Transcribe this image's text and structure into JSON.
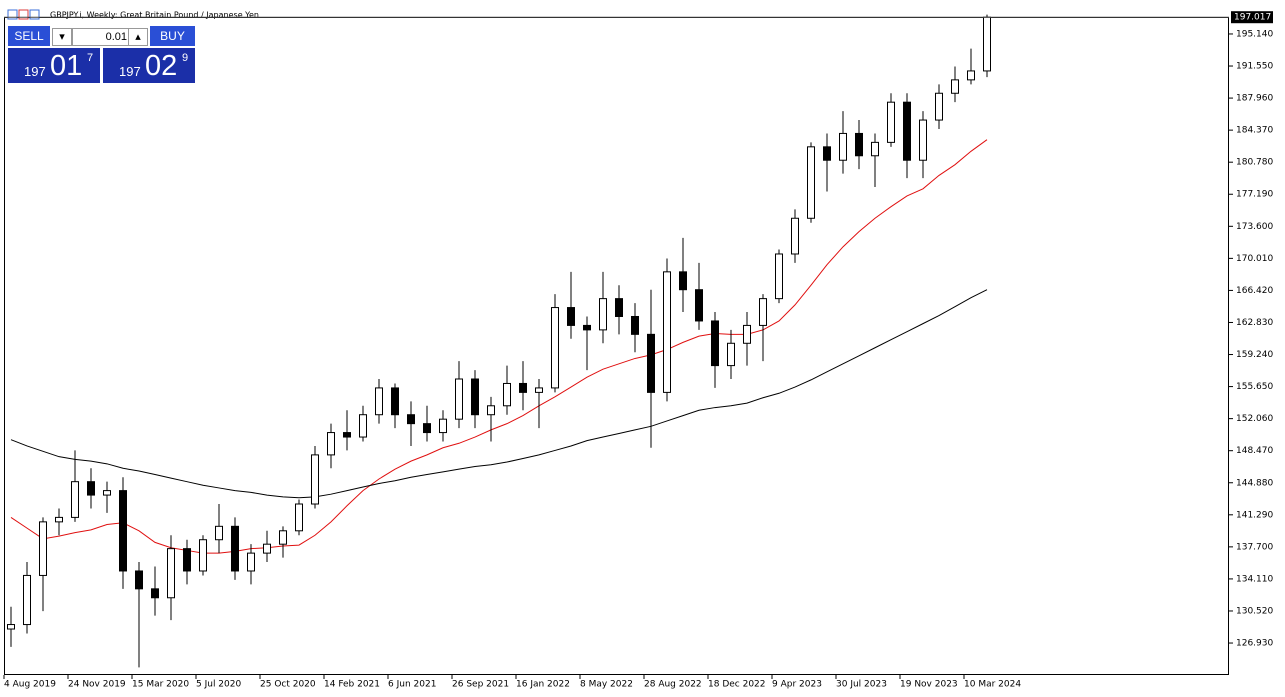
{
  "chart_data": {
    "type": "candlestick",
    "title": "GBPJPY.i, Weekly:  Great Britain Pound / Japanese Yen",
    "categories": [
      "4 Aug 2019",
      null,
      null,
      null,
      "24 Nov 2019",
      null,
      null,
      null,
      "15 Mar 2020",
      null,
      null,
      null,
      "5 Jul 2020",
      null,
      null,
      null,
      "25 Oct 2020",
      null,
      null,
      null,
      "14 Feb 2021",
      null,
      null,
      null,
      "6 Jun 2021",
      null,
      null,
      null,
      "26 Sep 2021",
      null,
      null,
      null,
      "16 Jan 2022",
      null,
      null,
      null,
      "8 May 2022",
      null,
      null,
      null,
      "28 Aug 2022",
      null,
      null,
      null,
      "18 Dec 2022",
      null,
      null,
      null,
      "9 Apr 2023",
      null,
      null,
      null,
      "30 Jul 2023",
      null,
      null,
      null,
      "19 Nov 2023",
      null,
      null,
      null,
      "10 Mar 2024",
      null
    ],
    "open": [
      128.5,
      129,
      134.5,
      140.5,
      141,
      145,
      143.5,
      144,
      135,
      133,
      132,
      137.5,
      135,
      138.5,
      140,
      135,
      137,
      138,
      139.5,
      142.5,
      148,
      150.5,
      150,
      152.5,
      155.5,
      152.5,
      151.5,
      150.5,
      152,
      156.5,
      152.5,
      153.5,
      156,
      155,
      155.5,
      164.5,
      162.5,
      162,
      165.5,
      163.5,
      161.5,
      155,
      168.5,
      166.5,
      163,
      158,
      160.5,
      162.5,
      165.5,
      170.5,
      174.5,
      182.5,
      181,
      184,
      181.5,
      183,
      187.5,
      181,
      185.5,
      188.5,
      190,
      191
    ],
    "high": [
      131,
      136,
      141,
      142,
      148.5,
      146.5,
      145,
      145.5,
      136,
      135.5,
      139,
      138.5,
      139,
      142.5,
      141,
      138,
      139.5,
      140,
      143,
      149,
      151.5,
      153,
      153.5,
      156.5,
      156,
      154,
      153.5,
      153,
      158.5,
      157.5,
      154.5,
      158,
      158.5,
      156.5,
      166,
      168.5,
      163.5,
      168.5,
      167,
      165,
      166.5,
      170,
      172.3,
      169.5,
      164,
      162,
      164,
      166,
      171,
      175.5,
      183,
      184,
      186.5,
      185.5,
      184,
      188.5,
      188.5,
      186.5,
      189.5,
      191.5,
      193.5,
      197.3
    ],
    "low": [
      126.5,
      128,
      130.5,
      139,
      140.5,
      142,
      141.5,
      133,
      124.2,
      130,
      129.5,
      133.5,
      134.5,
      137,
      134,
      133.5,
      136,
      136.5,
      139,
      142,
      146.5,
      148.5,
      149.5,
      151.5,
      151,
      149,
      149.5,
      149.5,
      151,
      151,
      149.5,
      152.5,
      153,
      151,
      155,
      161,
      157.5,
      160.5,
      161.5,
      159.5,
      148.8,
      154,
      164,
      162,
      155.5,
      156.5,
      158,
      158.5,
      165,
      169.5,
      174,
      177.5,
      179.5,
      180,
      178,
      182.5,
      179,
      179,
      184.5,
      187.5,
      189.5,
      190.3
    ],
    "close": [
      129,
      134.5,
      140.5,
      141,
      145,
      143.5,
      144,
      135,
      133,
      132,
      137.5,
      135,
      138.5,
      140,
      135,
      137,
      138,
      139.5,
      142.5,
      148,
      150.5,
      150,
      152.5,
      155.5,
      152.5,
      151.5,
      150.5,
      152,
      156.5,
      152.5,
      153.5,
      156,
      155,
      155.5,
      164.5,
      162.5,
      162,
      165.5,
      163.5,
      161.5,
      155,
      168.5,
      166.5,
      163,
      158,
      160.5,
      162.5,
      165.5,
      170.5,
      174.5,
      182.5,
      181,
      184,
      181.5,
      183,
      187.5,
      181,
      185.5,
      188.5,
      190,
      191,
      197.017
    ],
    "up_color": "#ffffff",
    "down_color": "#000000",
    "series": [
      {
        "color": "#e01010",
        "values": [
          141,
          139.8,
          138.6,
          138.9,
          139.3,
          139.6,
          140.2,
          140.4,
          139.5,
          138.2,
          137.6,
          137.3,
          137,
          137,
          137.2,
          137.5,
          137.6,
          137.8,
          137.9,
          139,
          140.5,
          142.3,
          144,
          145.3,
          146.4,
          147.3,
          148,
          148.8,
          149.3,
          150,
          150.8,
          151.5,
          152.4,
          153.5,
          154.5,
          155.6,
          156.7,
          157.6,
          158.2,
          158.8,
          159.2,
          159.8,
          160.6,
          161.3,
          161.6,
          161.5,
          161.5,
          162,
          163,
          164.8,
          167,
          169.3,
          171.3,
          173,
          174.5,
          175.8,
          177,
          177.8,
          179.3,
          180.5,
          182,
          183.3
        ]
      },
      {
        "color": "#000000",
        "values": [
          149.7,
          149,
          148.4,
          147.8,
          147.5,
          147.3,
          147,
          146.5,
          146.2,
          145.8,
          145.4,
          145,
          144.6,
          144.3,
          144,
          143.8,
          143.5,
          143.3,
          143.2,
          143.3,
          143.6,
          144,
          144.4,
          144.8,
          145.1,
          145.5,
          145.8,
          146.1,
          146.4,
          146.7,
          146.9,
          147.2,
          147.6,
          148,
          148.5,
          149,
          149.6,
          150,
          150.4,
          150.8,
          151.2,
          151.8,
          152.4,
          153,
          153.3,
          153.5,
          153.8,
          154.4,
          154.9,
          155.6,
          156.4,
          157.3,
          158.2,
          159.1,
          160,
          160.9,
          161.8,
          162.7,
          163.6,
          164.6,
          165.6,
          166.5
        ]
      }
    ],
    "ylim": [
      123.35,
      197.04
    ],
    "yticks": [
      {
        "value": 126.93,
        "label": "126.930"
      },
      {
        "value": 130.52,
        "label": "130.520"
      },
      {
        "value": 134.11,
        "label": "134.110"
      },
      {
        "value": 137.7,
        "label": "137.700"
      },
      {
        "value": 141.29,
        "label": "141.290"
      },
      {
        "value": 144.88,
        "label": "144.880"
      },
      {
        "value": 148.47,
        "label": "148.470"
      },
      {
        "value": 152.06,
        "label": "152.060"
      },
      {
        "value": 155.65,
        "label": "155.650"
      },
      {
        "value": 159.24,
        "label": "159.240"
      },
      {
        "value": 162.83,
        "label": "162.830"
      },
      {
        "value": 166.42,
        "label": "166.420"
      },
      {
        "value": 170.01,
        "label": "170.010"
      },
      {
        "value": 173.6,
        "label": "173.600"
      },
      {
        "value": 177.19,
        "label": "177.190"
      },
      {
        "value": 180.78,
        "label": "180.780"
      },
      {
        "value": 184.37,
        "label": "184.370"
      },
      {
        "value": 187.96,
        "label": "187.960"
      },
      {
        "value": 191.55,
        "label": "191.550"
      },
      {
        "value": 195.14,
        "label": "195.140"
      }
    ],
    "last_price": 197.017
  },
  "trade_panel": {
    "sell": "SELL",
    "lot": "0.01",
    "buy": "BUY",
    "bid": {
      "big": "197",
      "main": "01",
      "small": "7"
    },
    "ask": {
      "big": "197",
      "main": "02",
      "small": "9"
    }
  }
}
